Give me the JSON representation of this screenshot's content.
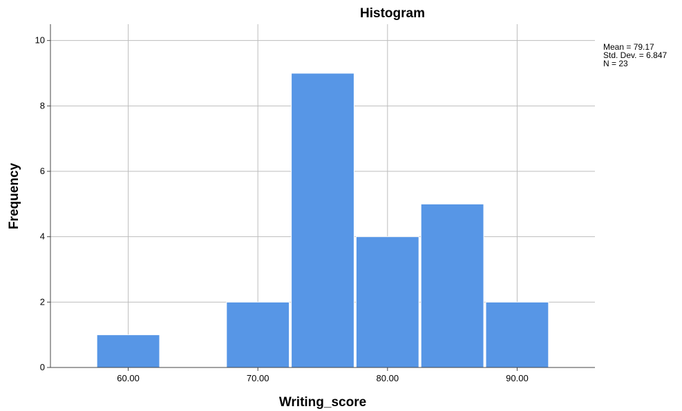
{
  "chart_data": {
    "type": "bar",
    "title": "Histogram",
    "xlabel": "Writing_score",
    "ylabel": "Frequency",
    "bins": [
      {
        "from": 57.5,
        "to": 62.5,
        "count": 1
      },
      {
        "from": 62.5,
        "to": 67.5,
        "count": 0
      },
      {
        "from": 67.5,
        "to": 72.5,
        "count": 2
      },
      {
        "from": 72.5,
        "to": 77.5,
        "count": 9
      },
      {
        "from": 77.5,
        "to": 82.5,
        "count": 4
      },
      {
        "from": 82.5,
        "to": 87.5,
        "count": 5
      },
      {
        "from": 87.5,
        "to": 92.5,
        "count": 2
      }
    ],
    "xlim": [
      54,
      96
    ],
    "ylim": [
      0,
      10.5
    ],
    "x_ticks": [
      {
        "value": 60,
        "label": "60.00"
      },
      {
        "value": 70,
        "label": "70.00"
      },
      {
        "value": 80,
        "label": "80.00"
      },
      {
        "value": 90,
        "label": "90.00"
      }
    ],
    "y_ticks": [
      {
        "value": 0,
        "label": "0"
      },
      {
        "value": 2,
        "label": "2"
      },
      {
        "value": 4,
        "label": "4"
      },
      {
        "value": 6,
        "label": "6"
      },
      {
        "value": 8,
        "label": "8"
      },
      {
        "value": 10,
        "label": "10"
      }
    ],
    "grid": true,
    "bar_color": "#5796e6",
    "legend_position": "top-right",
    "stats": {
      "mean": "Mean = 79.17",
      "std_dev": "Std. Dev. = 6.847",
      "n": "N = 23"
    }
  }
}
